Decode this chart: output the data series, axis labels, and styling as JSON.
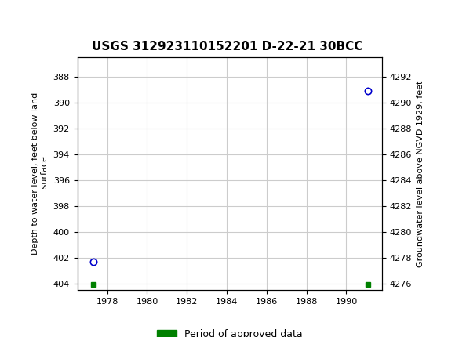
{
  "title": "USGS 312923110152201 D-22-21 30BCC",
  "ylabel_left": "Depth to water level, feet below land\n surface",
  "ylabel_right": "Groundwater level above NGVD 1929, feet",
  "header_color": "#006838",
  "background_color": "#ffffff",
  "plot_bg_color": "#ffffff",
  "grid_color": "#cccccc",
  "ylim_left": [
    404.5,
    386.5
  ],
  "ylim_right": [
    4275.5,
    4293.5
  ],
  "xlim": [
    1976.5,
    1991.8
  ],
  "xticks": [
    1978,
    1980,
    1982,
    1984,
    1986,
    1988,
    1990
  ],
  "yticks_left": [
    388,
    390,
    392,
    394,
    396,
    398,
    400,
    402,
    404
  ],
  "yticks_right": [
    4276,
    4278,
    4280,
    4282,
    4284,
    4286,
    4288,
    4290,
    4292
  ],
  "data_points": [
    {
      "x": 1977.3,
      "y_left": 402.3,
      "color": "#0000cc"
    },
    {
      "x": 1991.1,
      "y_left": 389.1,
      "color": "#0000cc"
    }
  ],
  "green_markers": [
    {
      "x": 1977.3,
      "y_left": 404.1
    },
    {
      "x": 1991.1,
      "y_left": 404.1
    }
  ],
  "legend_label": "Period of approved data",
  "legend_color": "#008000",
  "font_name": "DejaVu Sans"
}
